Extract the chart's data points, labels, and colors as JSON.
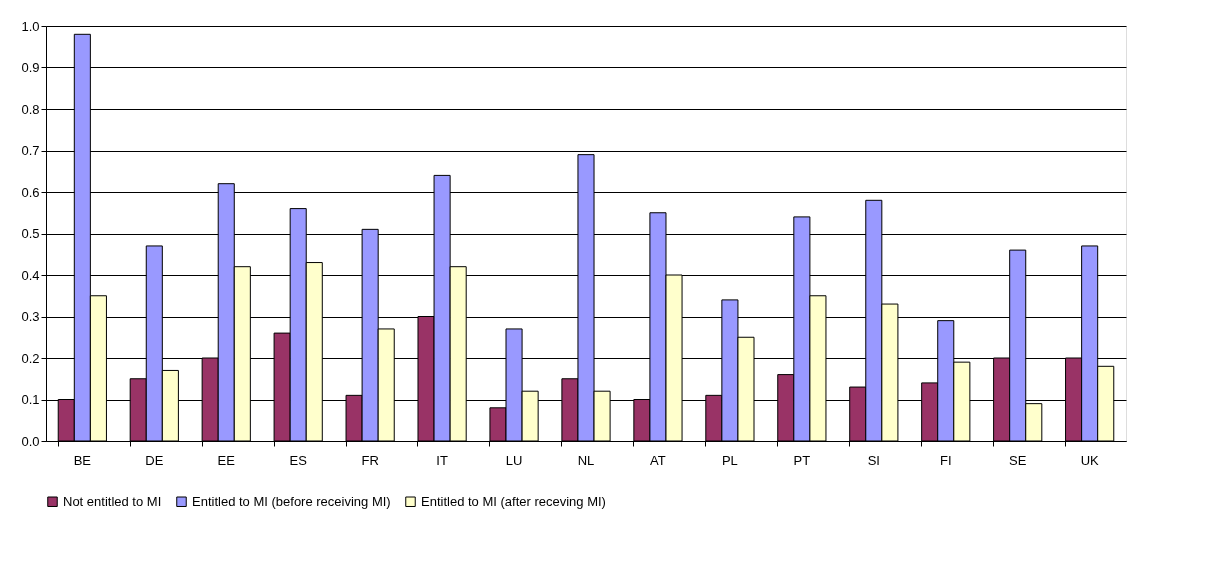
{
  "chart_data": {
    "type": "bar",
    "categories": [
      "BE",
      "DE",
      "EE",
      "ES",
      "FR",
      "IT",
      "LU",
      "NL",
      "AT",
      "PL",
      "PT",
      "SI",
      "FI",
      "SE",
      "UK"
    ],
    "series": [
      {
        "name": "Not entitled to MI",
        "color": "#993366",
        "values": [
          0.1,
          0.15,
          0.2,
          0.26,
          0.11,
          0.3,
          0.08,
          0.15,
          0.1,
          0.11,
          0.16,
          0.13,
          0.14,
          0.2,
          0.2
        ]
      },
      {
        "name": "Entitled to MI (before receiving MI)",
        "color": "#9999ff",
        "values": [
          0.98,
          0.47,
          0.62,
          0.56,
          0.51,
          0.64,
          0.27,
          0.69,
          0.55,
          0.34,
          0.54,
          0.58,
          0.29,
          0.46,
          0.47
        ]
      },
      {
        "name": "Entitled to MI (after receving MI)",
        "color": "#ffffcc",
        "values": [
          0.35,
          0.17,
          0.42,
          0.43,
          0.27,
          0.42,
          0.12,
          0.12,
          0.4,
          0.25,
          0.35,
          0.33,
          0.19,
          0.09,
          0.18
        ]
      }
    ],
    "ylim": [
      0,
      1.0
    ],
    "yticks": [
      {
        "value": 0,
        "label": "0.0"
      },
      {
        "value": 0.1,
        "label": "0.1"
      },
      {
        "value": 0.2,
        "label": "0.2"
      },
      {
        "value": 0.3,
        "label": "0.3"
      },
      {
        "value": 0.4,
        "label": "0.4"
      },
      {
        "value": 0.5,
        "label": "0.5"
      },
      {
        "value": 0.6,
        "label": "0.6"
      },
      {
        "value": 0.7,
        "label": "0.7"
      },
      {
        "value": 0.8,
        "label": "0.8"
      },
      {
        "value": 0.9,
        "label": "0.9"
      },
      {
        "value": 1.0,
        "label": "1.0"
      }
    ],
    "grid": "y",
    "legend": "bottom"
  }
}
